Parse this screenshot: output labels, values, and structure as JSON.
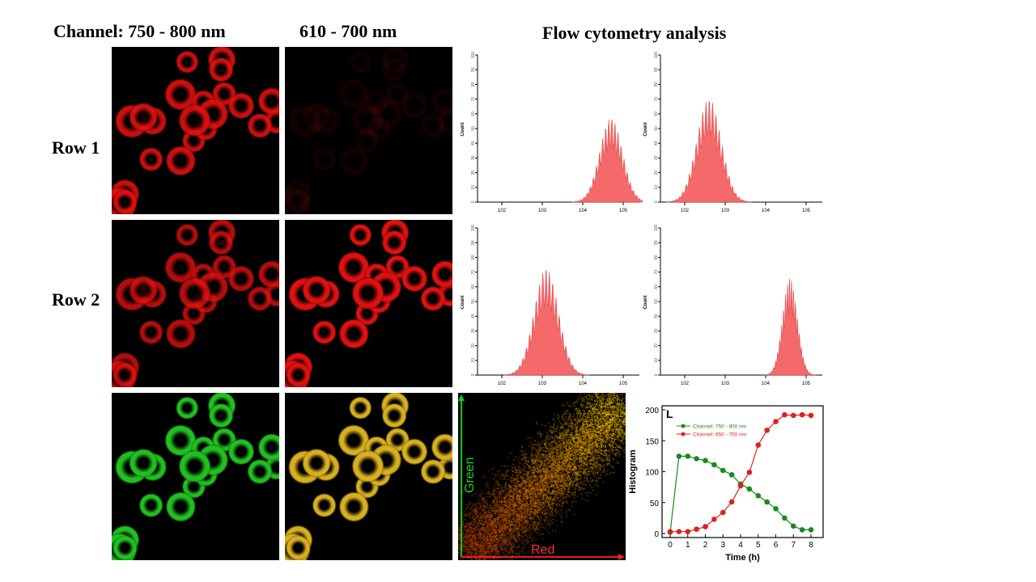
{
  "headers": {
    "col1": "Channel: 750 - 800 nm",
    "col2": "610 - 700 nm",
    "flow": "Flow cytometry analysis"
  },
  "rows": {
    "row1": "Row 1",
    "row2": "Row 2"
  },
  "colors": {
    "red_cell": "#e01010",
    "green_cell": "#20c020",
    "merge": "#d8b020",
    "hist_fill": "#f46a6a"
  },
  "chart_data": [
    {
      "type": "area",
      "name": "histogram-r1-a",
      "ylabel": "Count",
      "ylim": [
        0,
        100
      ],
      "xscale": "log",
      "xticks": [
        "10^2",
        "10^3",
        "10^4",
        "10^5"
      ],
      "peak_log10": 4.7,
      "peak_count": 52,
      "spread": 0.28
    },
    {
      "type": "area",
      "name": "histogram-r1-b",
      "ylabel": "Count",
      "ylim": [
        0,
        100
      ],
      "xscale": "log",
      "xticks": [
        "10^2",
        "10^3",
        "10^4",
        "10^5"
      ],
      "peak_log10": 2.6,
      "peak_count": 64,
      "spread": 0.3
    },
    {
      "type": "area",
      "name": "histogram-r2-a",
      "ylabel": "Count",
      "ylim": [
        0,
        100
      ],
      "xscale": "log",
      "xticks": [
        "10^2",
        "10^3",
        "10^4",
        "10^5"
      ],
      "peak_log10": 3.1,
      "peak_count": 66,
      "spread": 0.3
    },
    {
      "type": "area",
      "name": "histogram-r2-b",
      "ylabel": "Count",
      "ylim": [
        0,
        100
      ],
      "xscale": "log",
      "xticks": [
        "10^2",
        "10^3",
        "10^4",
        "10^5"
      ],
      "peak_log10": 4.6,
      "peak_count": 60,
      "spread": 0.18
    },
    {
      "type": "scatter",
      "name": "colocalization",
      "xlabel": "Red",
      "ylabel": "Green"
    },
    {
      "type": "line",
      "panel_label": "L",
      "xlabel": "Time (h)",
      "ylabel": "Histogram",
      "xlim": [
        0,
        8
      ],
      "ylim": [
        0,
        200
      ],
      "xticks": [
        0,
        1,
        2,
        3,
        4,
        5,
        6,
        7,
        8
      ],
      "yticks": [
        0,
        50,
        100,
        150,
        200
      ],
      "x": [
        0,
        0.5,
        1,
        1.5,
        2,
        2.5,
        3,
        3.5,
        4,
        4.5,
        5,
        5.5,
        6,
        6.5,
        7,
        7.5,
        8
      ],
      "series": [
        {
          "name": "Channel: 750 - 800 nm",
          "color": "#1a8a1a",
          "values": [
            2,
            125,
            125,
            121,
            118,
            111,
            102,
            95,
            80,
            72,
            61,
            51,
            40,
            25,
            12,
            6,
            6
          ]
        },
        {
          "name": "Channel: 650 - 750 nm",
          "color": "#e02020",
          "values": [
            3,
            3,
            3,
            7,
            11,
            23,
            34,
            51,
            77,
            99,
            143,
            167,
            181,
            192,
            191,
            192,
            191
          ]
        }
      ]
    }
  ]
}
